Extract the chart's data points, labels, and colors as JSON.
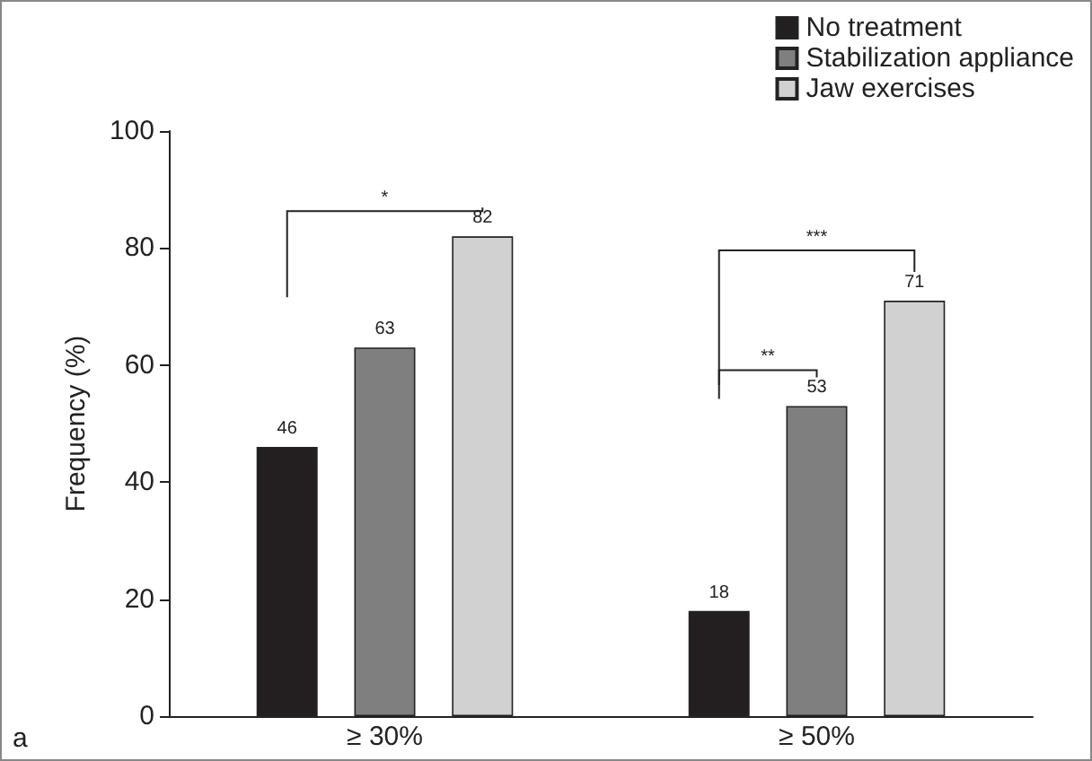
{
  "chart_data": {
    "type": "bar",
    "ylabel": "Frequency (%)",
    "categories": [
      "≥ 30%",
      "≥ 50%"
    ],
    "series": [
      {
        "name": "No treatment",
        "color": "#231f20",
        "values": [
          46,
          18
        ]
      },
      {
        "name": "Stabilization appliance",
        "color": "#7f7f7f",
        "values": [
          63,
          53
        ]
      },
      {
        "name": "Jaw exercises",
        "color": "#d1d1d1",
        "values": [
          82,
          71
        ]
      }
    ],
    "ylim": [
      0,
      100
    ],
    "yticks": [
      0,
      20,
      40,
      60,
      80,
      100
    ],
    "data_labels": true,
    "grid": false,
    "legend": "top right",
    "annotations": [
      "*",
      "**",
      "***",
      "a"
    ]
  }
}
